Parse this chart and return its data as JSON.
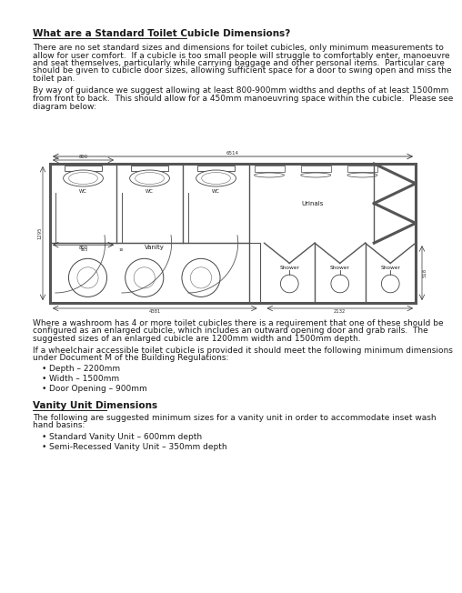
{
  "title": "What are a Standard Toilet Cubicle Dimensions?",
  "para1_lines": [
    "There are no set standard sizes and dimensions for toilet cubicles, only minimum measurements to",
    "allow for user comfort.  If a cubicle is too small people will struggle to comfortably enter, manoeuvre",
    "and seat themselves, particularly while carrying baggage and other personal items.  Particular care",
    "should be given to cubicle door sizes, allowing sufficient space for a door to swing open and miss the",
    "toilet pan."
  ],
  "para2_lines": [
    "By way of guidance we suggest allowing at least 800-900mm widths and depths of at least 1500mm",
    "from front to back.  This should allow for a 450mm manoeuvring space within the cubicle.  Please see",
    "diagram below:"
  ],
  "para3_lines": [
    "Where a washroom has 4 or more toilet cubicles there is a requirement that one of these should be",
    "configured as an enlarged cubicle, which includes an outward opening door and grab rails.  The",
    "suggested sizes of an enlarged cubicle are 1200mm width and 1500mm depth."
  ],
  "para4_lines": [
    "If a wheelchair accessible toilet cubicle is provided it should meet the following minimum dimensions",
    "under Document M of the Building Regulations:"
  ],
  "bullets1": [
    "Depth – 2200mm",
    "Width – 1500mm",
    "Door Opening – 900mm"
  ],
  "section2_title": "Vanity Unit Dimensions",
  "para5_lines": [
    "The following are suggested minimum sizes for a vanity unit in order to accommodate inset wash",
    "hand basins:"
  ],
  "bullets2": [
    "Standard Vanity Unit – 600mm depth",
    "Semi-Recessed Vanity Unit – 350mm depth"
  ],
  "bg_color": "#ffffff",
  "text_color": "#1a1a1a",
  "wall_color": "#555555",
  "dim_color": "#333333",
  "font_size": 6.5,
  "title_font_size": 7.5,
  "lh": 8.5,
  "lm": 26,
  "rm": 452
}
